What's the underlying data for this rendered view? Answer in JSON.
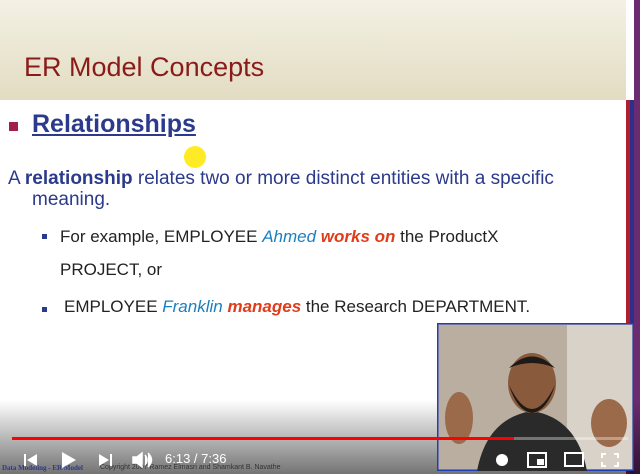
{
  "slide": {
    "title": "ER Model Concepts",
    "heading": "Relationships",
    "paragraph": [
      "A ",
      "relationship",
      " relates two or more distinct entities with a specific meaning."
    ],
    "bullets": [
      [
        "For example, EMPLOYEE ",
        "Ahmed ",
        "works on",
        " the ProductX PROJECT, or"
      ],
      [
        "EMPLOYEE ",
        "Franklin ",
        "manages",
        " the Research DEPARTMENT."
      ]
    ],
    "footer_left": "Data Modeling - ER Model",
    "footer_right": "Copyright 2007 Ramez Elmasri and Shamkant B. Navathe"
  },
  "player": {
    "time": "6:13 / 7:36"
  }
}
